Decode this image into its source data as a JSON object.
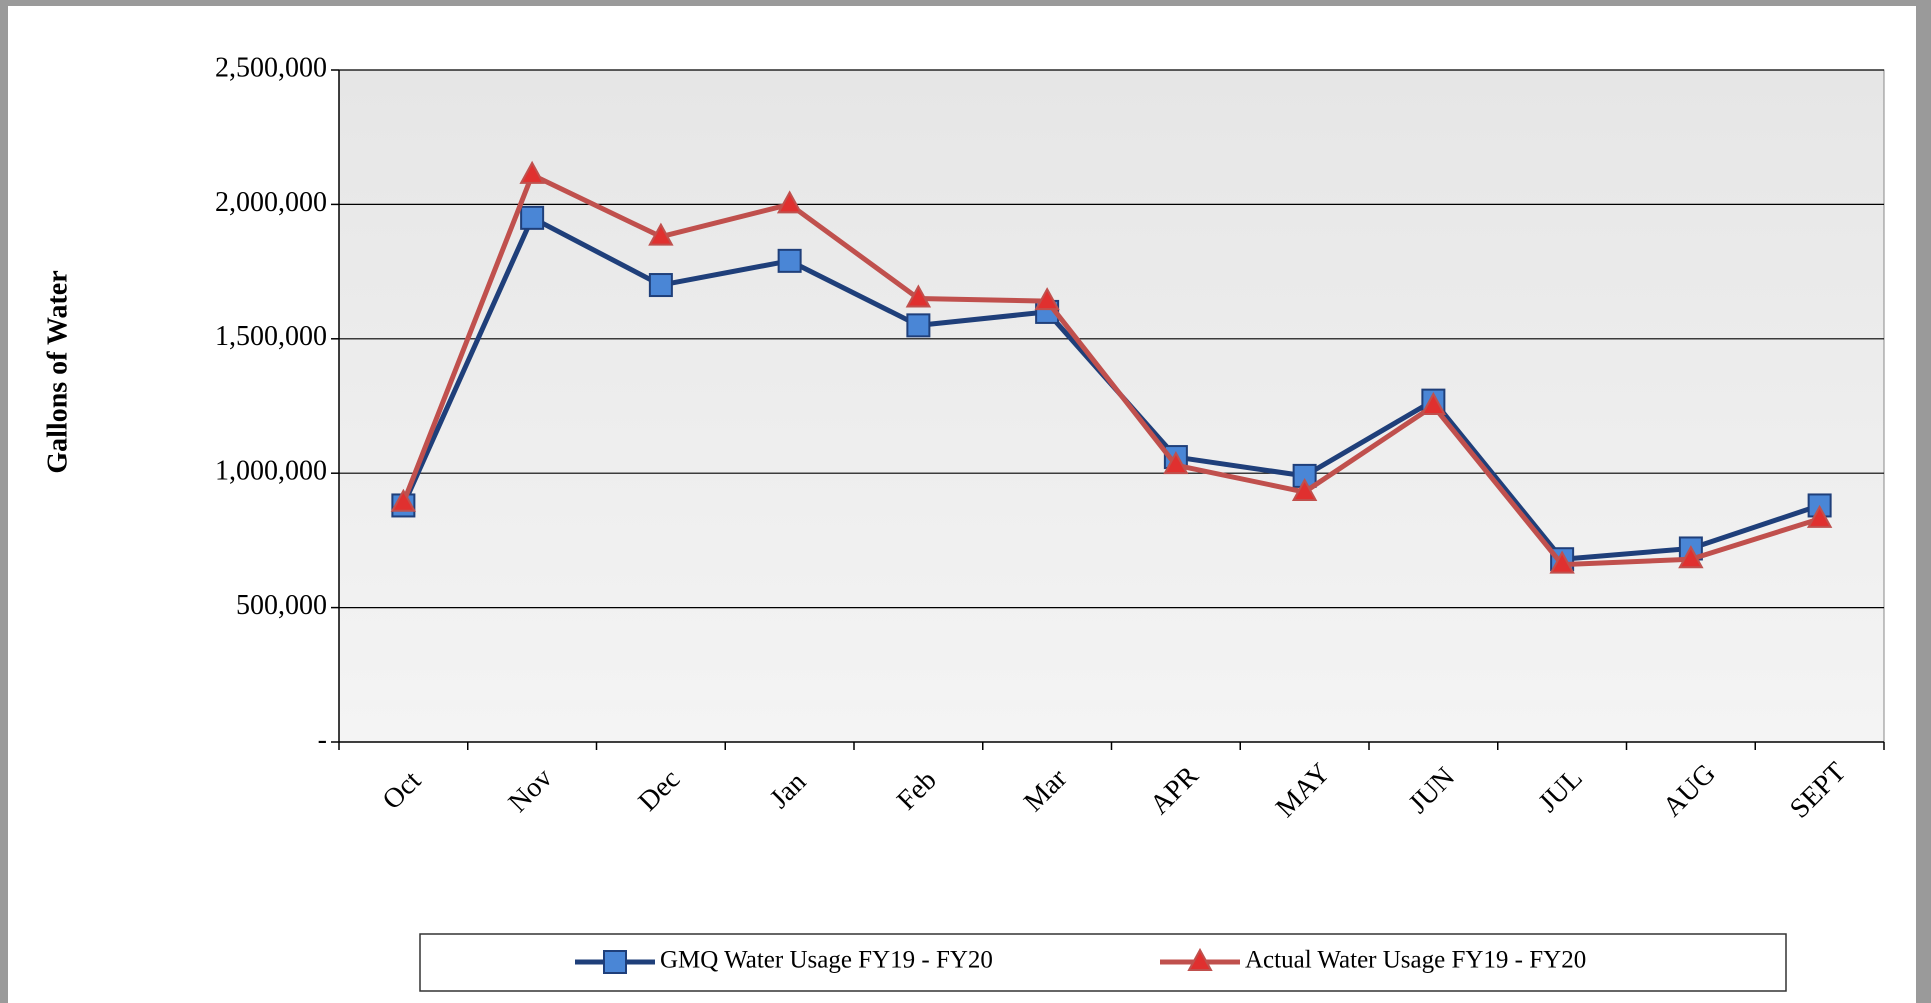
{
  "chart_data": {
    "type": "line",
    "y_label": "Gallons of Water",
    "categories": [
      "Oct",
      "Nov",
      "Dec",
      "Jan",
      "Feb",
      "Mar",
      "APR",
      "MAY",
      "JUN",
      "JUL",
      "AUG",
      "SEPT"
    ],
    "series": [
      {
        "name": "GMQ Water Usage FY19 - FY20",
        "color": "#1f3f7a",
        "marker_color": "#4a86d6",
        "marker": "square",
        "values": [
          880000,
          1950000,
          1700000,
          1790000,
          1550000,
          1600000,
          1060000,
          990000,
          1270000,
          680000,
          720000,
          880000
        ]
      },
      {
        "name": "Actual Water Usage FY19 - FY20",
        "color": "#c0504d",
        "marker_color": "#e0302f",
        "marker": "triangle",
        "values": [
          890000,
          2110000,
          1880000,
          2000000,
          1650000,
          1640000,
          1030000,
          930000,
          1250000,
          660000,
          680000,
          830000
        ]
      }
    ],
    "ylim": [
      0,
      2500000
    ],
    "yticks": [
      {
        "value": 0,
        "label": "-"
      },
      {
        "value": 500000,
        "label": "500,000"
      },
      {
        "value": 1000000,
        "label": "1,000,000"
      },
      {
        "value": 1500000,
        "label": "1,500,000"
      },
      {
        "value": 2000000,
        "label": "2,000,000"
      },
      {
        "value": 2500000,
        "label": "2,500,000"
      }
    ],
    "grid": true,
    "legend": "bottom"
  }
}
